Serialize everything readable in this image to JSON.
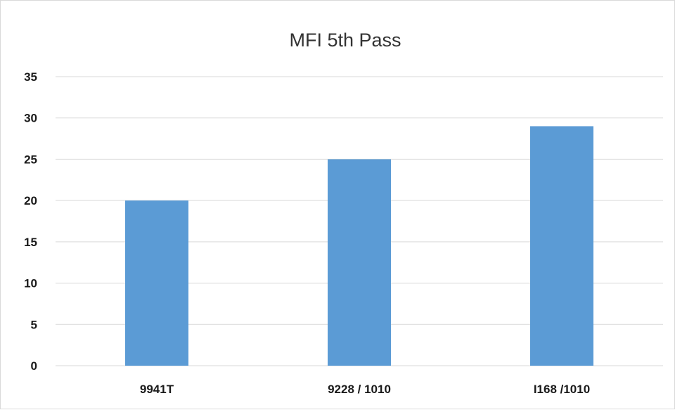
{
  "chart_data": {
    "type": "bar",
    "title": "MFI 5th Pass",
    "xlabel": "",
    "ylabel": "",
    "categories": [
      "9941T",
      "9228 / 1010",
      "I168 /1010"
    ],
    "values": [
      20,
      25,
      29
    ],
    "ylim": [
      0,
      35
    ],
    "yticks": [
      0,
      5,
      10,
      15,
      20,
      25,
      30,
      35
    ],
    "grid": true,
    "legend": false,
    "bar_color": "#5b9bd5"
  }
}
